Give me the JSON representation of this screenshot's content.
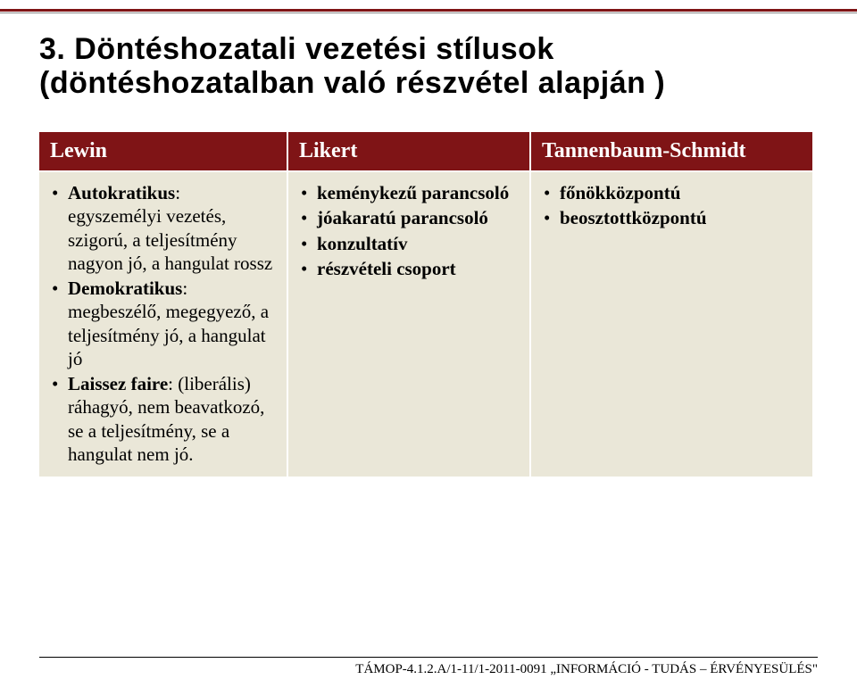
{
  "title": "3. Döntéshozatali vezetési stílusok (döntéshozatalban való részvétel alapján )",
  "headers": {
    "c1": "Lewin",
    "c2": "Likert",
    "c3": "Tannenbaum-Schmidt"
  },
  "lewin": {
    "b1_label": "Autokratikus",
    "b1_rest": ": egyszemélyi vezetés, szigorú, a teljesítmény nagyon jó, a hangulat rossz",
    "b2_label": "Demokratikus",
    "b2_rest": ": megbeszélő, megegyező, a teljesítmény jó, a hangulat jó",
    "b3_label": "Laissez faire",
    "b3_rest": ": (liberális) ráhagyó, nem beavatkozó, se a teljesítmény, se a hangulat nem jó."
  },
  "likert": {
    "b1": "keménykezű parancsoló",
    "b2": "jóakaratú parancsoló",
    "b3": "konzultatív",
    "b4": "részvételi csoport"
  },
  "ts": {
    "b1": "főnökközpontú",
    "b2": "beosztottközpontú"
  },
  "footer": "TÁMOP-4.1.2.A/1-11/1-2011-0091 „INFORMÁCIÓ - TUDÁS – ÉRVÉNYESÜLÉS\"",
  "colors": {
    "accent": "#7f1416",
    "cell_bg": "#eae7d8"
  }
}
